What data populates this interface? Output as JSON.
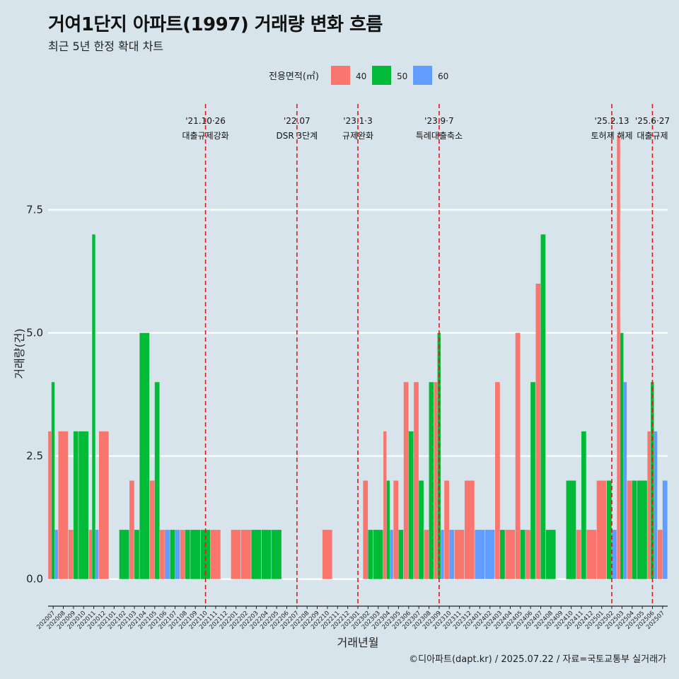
{
  "title": "거여1단지 아파트(1997) 거래량 변화 흐름",
  "subtitle": "최근 5년 한정 확대 차트",
  "caption": "©디아파트(dapt.kr) / 2025.07.22 / 자료=국토교통부 실거래가",
  "legend": {
    "title": "전용면적(㎡)",
    "items": [
      {
        "label": "40",
        "color": "#f8766d"
      },
      {
        "label": "50",
        "color": "#00ba38"
      },
      {
        "label": "60",
        "color": "#619cff"
      }
    ]
  },
  "chart_data": {
    "type": "bar",
    "xlabel": "거래년월",
    "ylabel": "거래량(건)",
    "ylim": [
      -0.55,
      9.75
    ],
    "yticks": [
      0.0,
      2.5,
      5.0,
      7.5
    ],
    "ytick_labels": [
      "0.0",
      "2.5",
      "5.0",
      "7.5"
    ],
    "grid": true,
    "legend_position": "top",
    "categories": [
      "202007",
      "202008",
      "202009",
      "202010",
      "202011",
      "202012",
      "202101",
      "202102",
      "202103",
      "202104",
      "202105",
      "202106",
      "202107",
      "202108",
      "202109",
      "202110",
      "202111",
      "202112",
      "202201",
      "202202",
      "202203",
      "202204",
      "202205",
      "202206",
      "202207",
      "202208",
      "202209",
      "202210",
      "202211",
      "202212",
      "202301",
      "202302",
      "202303",
      "202304",
      "202305",
      "202306",
      "202307",
      "202308",
      "202309",
      "202310",
      "202311",
      "202312",
      "202401",
      "202402",
      "202403",
      "202404",
      "202405",
      "202406",
      "202407",
      "202408",
      "202409",
      "202410",
      "202411",
      "202412",
      "202501",
      "202502",
      "202503",
      "202504",
      "202505",
      "202506",
      "202507"
    ],
    "series": [
      {
        "name": "40",
        "color": "#f8766d",
        "values": [
          3,
          3,
          1,
          null,
          1,
          3,
          null,
          null,
          2,
          null,
          2,
          1,
          null,
          1,
          null,
          null,
          1,
          null,
          1,
          1,
          null,
          null,
          null,
          null,
          null,
          null,
          null,
          1,
          null,
          null,
          null,
          2,
          null,
          3,
          2,
          4,
          4,
          1,
          4,
          2,
          1,
          2,
          null,
          null,
          4,
          1,
          5,
          1,
          6,
          null,
          null,
          null,
          1,
          1,
          2,
          null,
          9,
          2,
          null,
          3,
          1
        ]
      },
      {
        "name": "50",
        "color": "#00ba38",
        "values": [
          4,
          null,
          3,
          3,
          7,
          null,
          null,
          1,
          1,
          5,
          4,
          null,
          1,
          1,
          1,
          1,
          null,
          null,
          null,
          null,
          1,
          1,
          1,
          null,
          null,
          null,
          null,
          null,
          null,
          null,
          null,
          1,
          1,
          2,
          1,
          3,
          2,
          4,
          5,
          null,
          null,
          null,
          null,
          null,
          1,
          null,
          1,
          4,
          7,
          1,
          null,
          2,
          3,
          null,
          null,
          2,
          5,
          2,
          2,
          4,
          null
        ]
      },
      {
        "name": "60",
        "color": "#619cff",
        "values": [
          1,
          null,
          null,
          null,
          1,
          null,
          null,
          null,
          null,
          null,
          null,
          1,
          1,
          null,
          null,
          null,
          null,
          null,
          null,
          null,
          null,
          null,
          null,
          null,
          null,
          null,
          null,
          null,
          null,
          null,
          null,
          null,
          null,
          1,
          null,
          null,
          null,
          null,
          1,
          1,
          null,
          null,
          1,
          1,
          null,
          null,
          null,
          null,
          null,
          null,
          null,
          null,
          null,
          null,
          null,
          1,
          4,
          null,
          null,
          3,
          2
        ]
      }
    ],
    "annotations": [
      {
        "category": "202110",
        "line1": "'21.10·26",
        "line2": "대출규제강화"
      },
      {
        "category": "202207",
        "line1": "'22.07",
        "line2": "DSR 3단계"
      },
      {
        "category": "202301",
        "line1": "'23.1·3",
        "line2": "규제완화"
      },
      {
        "category": "202309",
        "line1": "'23.9·7",
        "line2": "특례대출축소"
      },
      {
        "category": "202502",
        "line1": "'25.2.13",
        "line2": "토허제 해제"
      },
      {
        "category": "202506",
        "line1": "'25.6·27",
        "line2": "대출규제"
      }
    ]
  }
}
